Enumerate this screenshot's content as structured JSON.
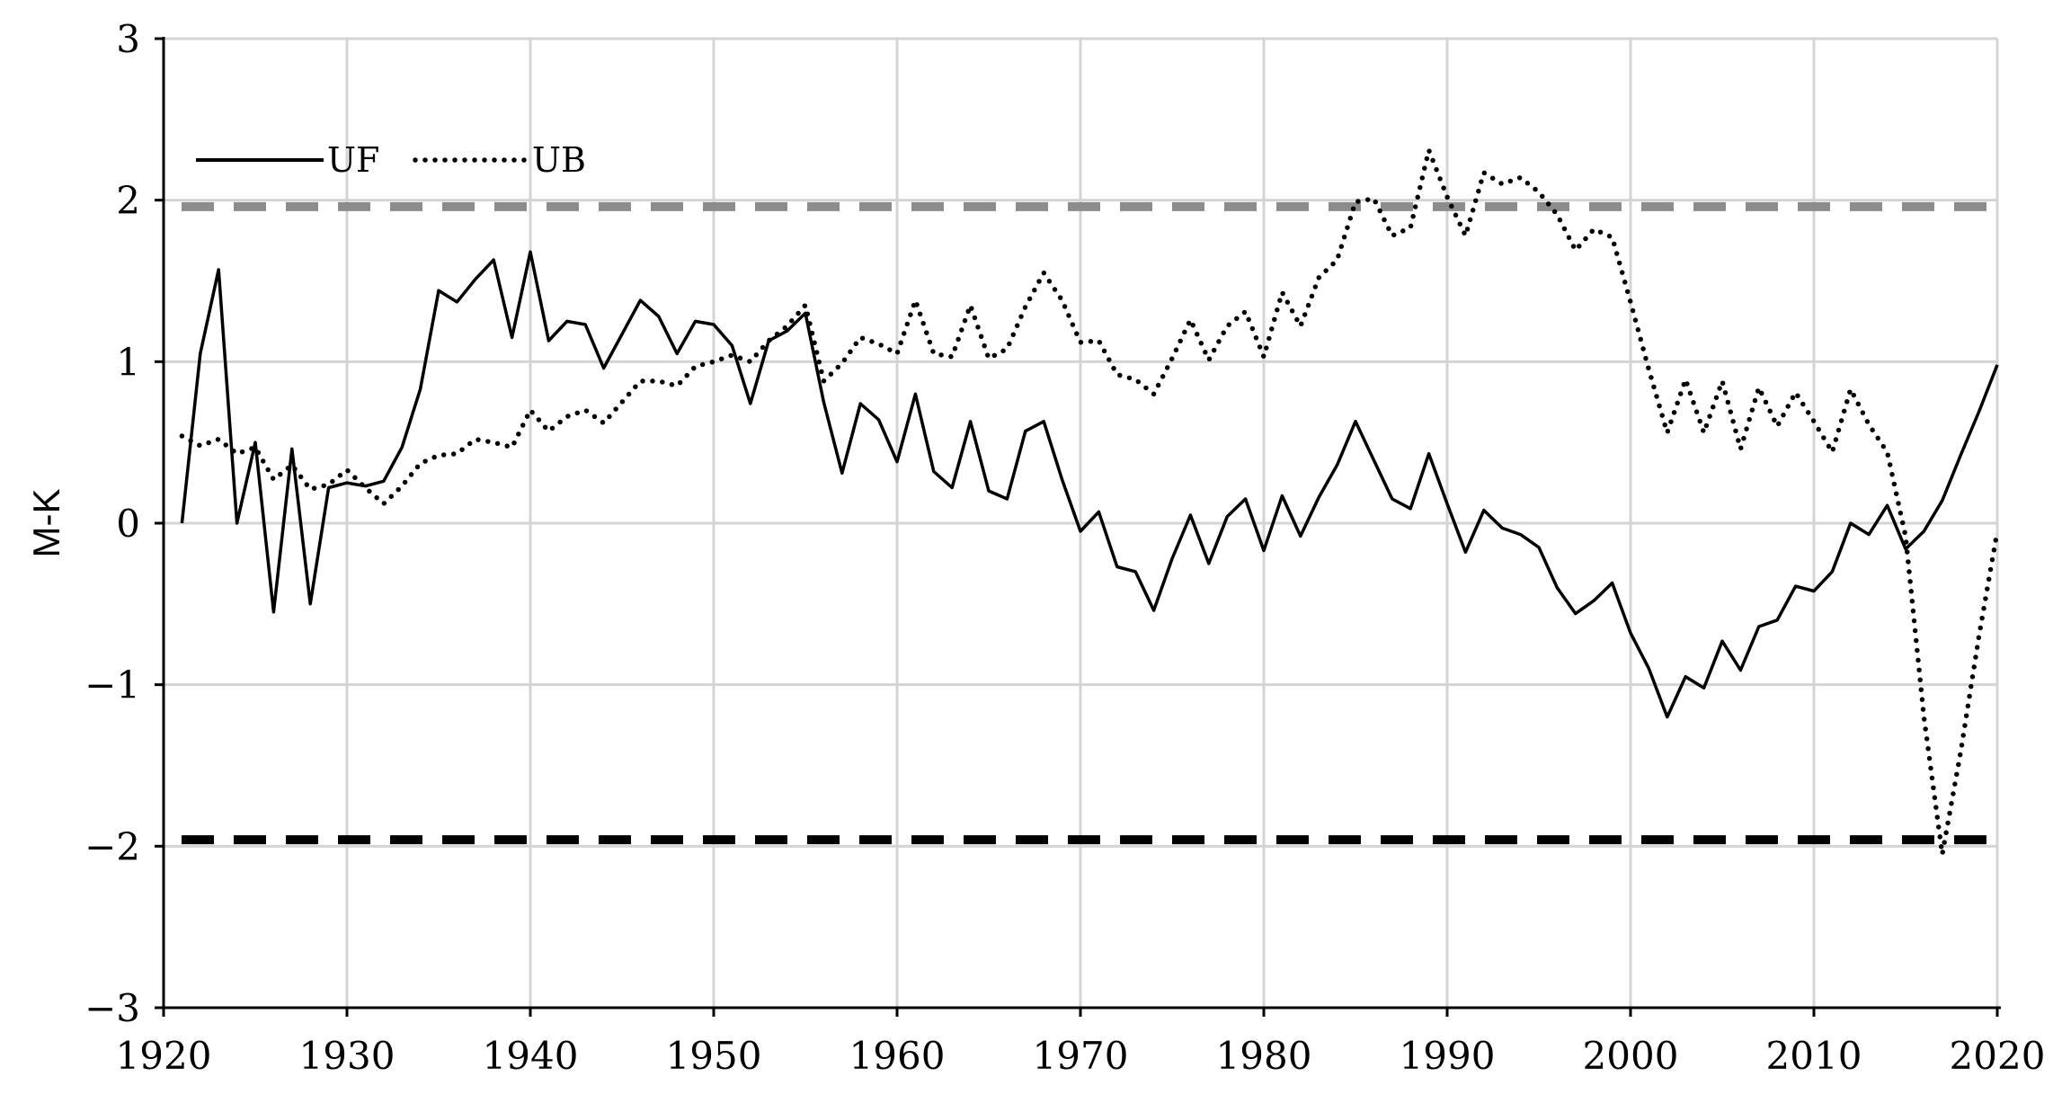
{
  "chart_data": {
    "type": "line",
    "title": "",
    "xlabel": "",
    "ylabel": "M-K",
    "xlim": [
      1920,
      2020
    ],
    "ylim": [
      -3,
      3
    ],
    "x_ticks": [
      "1920",
      "1930",
      "1940",
      "1950",
      "1960",
      "1970",
      "1980",
      "1990",
      "2000",
      "2010",
      "2020"
    ],
    "y_ticks": [
      "3",
      "2",
      "1",
      "0",
      "-1",
      "-2",
      "-3"
    ],
    "grid": true,
    "legend": "top-left",
    "x": [
      1921,
      1922,
      1923,
      1924,
      1925,
      1926,
      1927,
      1928,
      1929,
      1930,
      1931,
      1932,
      1933,
      1934,
      1935,
      1936,
      1937,
      1938,
      1939,
      1940,
      1941,
      1942,
      1943,
      1944,
      1945,
      1946,
      1947,
      1948,
      1949,
      1950,
      1951,
      1952,
      1953,
      1954,
      1955,
      1956,
      1957,
      1958,
      1959,
      1960,
      1961,
      1962,
      1963,
      1964,
      1965,
      1966,
      1967,
      1968,
      1969,
      1970,
      1971,
      1972,
      1973,
      1974,
      1975,
      1976,
      1977,
      1978,
      1979,
      1980,
      1981,
      1982,
      1983,
      1984,
      1985,
      1986,
      1987,
      1988,
      1989,
      1990,
      1991,
      1992,
      1993,
      1994,
      1995,
      1996,
      1997,
      1998,
      1999,
      2000,
      2001,
      2002,
      2003,
      2004,
      2005,
      2006,
      2007,
      2008,
      2009,
      2010,
      2011,
      2012,
      2013,
      2014,
      2015,
      2016,
      2017,
      2018,
      2019,
      2020
    ],
    "series": [
      {
        "name": "UF",
        "style": "solid",
        "color": "#000000",
        "values": [
          0.0,
          1.05,
          1.57,
          0.0,
          0.5,
          -0.55,
          0.46,
          -0.5,
          0.22,
          0.25,
          0.23,
          0.26,
          0.47,
          0.83,
          1.44,
          1.37,
          1.51,
          1.63,
          1.15,
          1.68,
          1.13,
          1.25,
          1.23,
          0.96,
          1.17,
          1.38,
          1.28,
          1.05,
          1.25,
          1.23,
          1.1,
          0.74,
          1.13,
          1.19,
          1.3,
          0.75,
          0.31,
          0.74,
          0.64,
          0.38,
          0.8,
          0.32,
          0.22,
          0.63,
          0.2,
          0.15,
          0.57,
          0.63,
          0.27,
          -0.05,
          0.07,
          -0.27,
          -0.3,
          -0.54,
          -0.22,
          0.05,
          -0.25,
          0.04,
          0.15,
          -0.17,
          0.17,
          -0.08,
          0.16,
          0.36,
          0.63,
          0.39,
          0.15,
          0.09,
          0.43,
          0.12,
          -0.18,
          0.08,
          -0.03,
          -0.07,
          -0.15,
          -0.4,
          -0.56,
          -0.48,
          -0.37,
          -0.68,
          -0.9,
          -1.2,
          -0.95,
          -1.02,
          -0.73,
          -0.91,
          -0.64,
          -0.6,
          -0.39,
          -0.42,
          -0.3,
          0.0,
          -0.07,
          0.11,
          -0.16,
          -0.05,
          0.14,
          0.42,
          0.69,
          0.98
        ]
      },
      {
        "name": "UB",
        "style": "dotted",
        "color": "#000000",
        "values": [
          0.54,
          0.48,
          0.52,
          0.43,
          0.47,
          0.27,
          0.36,
          0.21,
          0.24,
          0.33,
          0.22,
          0.12,
          0.23,
          0.37,
          0.42,
          0.43,
          0.52,
          0.5,
          0.47,
          0.7,
          0.57,
          0.66,
          0.7,
          0.62,
          0.75,
          0.88,
          0.88,
          0.85,
          0.97,
          1.0,
          1.04,
          1.0,
          1.13,
          1.22,
          1.35,
          0.88,
          0.99,
          1.15,
          1.11,
          1.05,
          1.38,
          1.05,
          1.03,
          1.35,
          1.02,
          1.08,
          1.34,
          1.55,
          1.38,
          1.12,
          1.13,
          0.92,
          0.89,
          0.8,
          1.02,
          1.26,
          1.01,
          1.22,
          1.31,
          1.03,
          1.43,
          1.22,
          1.52,
          1.63,
          1.99,
          2.01,
          1.78,
          1.83,
          2.31,
          2.02,
          1.78,
          2.17,
          2.1,
          2.14,
          2.05,
          1.91,
          1.69,
          1.82,
          1.77,
          1.37,
          0.95,
          0.56,
          0.89,
          0.56,
          0.88,
          0.46,
          0.84,
          0.6,
          0.81,
          0.63,
          0.44,
          0.83,
          0.61,
          0.44,
          -0.08,
          -1.2,
          -2.05,
          -1.42,
          -0.7,
          -0.05
        ]
      }
    ],
    "reference_lines": [
      {
        "y": 1.96,
        "style": "dashed",
        "color": "#8c8c8c"
      },
      {
        "y": -1.96,
        "style": "dashed",
        "color": "#000000"
      }
    ]
  }
}
